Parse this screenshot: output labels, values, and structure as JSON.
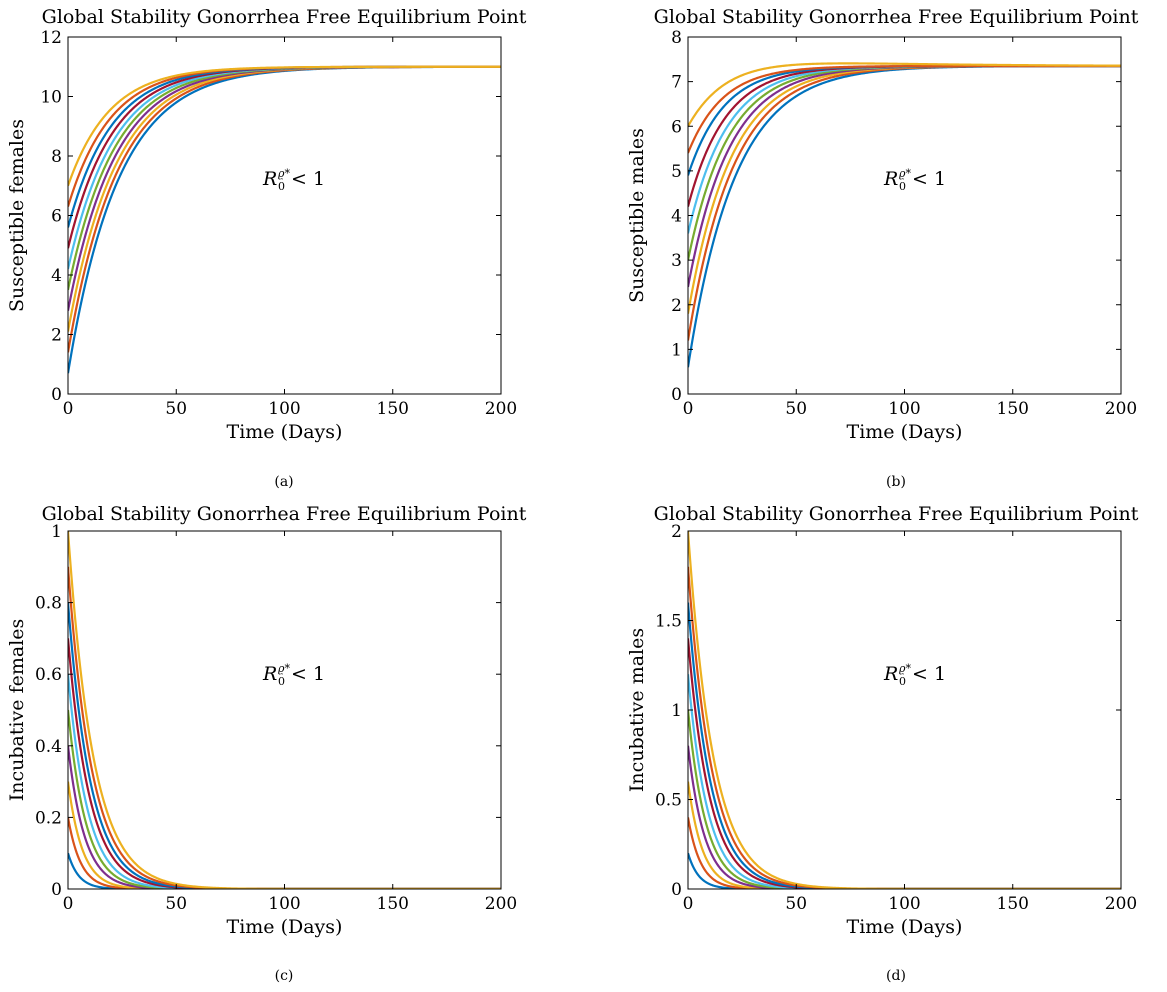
{
  "colors": [
    "#0072BD",
    "#D95319",
    "#EDB120",
    "#7E2F8E",
    "#77AC30",
    "#4DBEEE",
    "#A2142F",
    "#0072BD",
    "#D95319",
    "#EDB120"
  ],
  "chart_data": [
    {
      "type": "line",
      "title": "Global Stability Gonorrhea Free Equilibrium Point",
      "xlabel": "Time (Days)",
      "ylabel": "Susceptible females",
      "caption": "(a)",
      "annotation": {
        "main": "R",
        "sub": "0",
        "sup": "ϱ*",
        "rest": " < 1"
      },
      "xlim": [
        0,
        200
      ],
      "ylim": [
        0,
        12
      ],
      "xticks": [
        0,
        50,
        100,
        150,
        200
      ],
      "yticks": [
        0,
        2,
        4,
        6,
        8,
        10,
        12
      ],
      "equilibrium": 11,
      "series": [
        {
          "initial": 0.7,
          "rate": 0.043
        },
        {
          "initial": 1.4,
          "rate": 0.044
        },
        {
          "initial": 2.1,
          "rate": 0.045
        },
        {
          "initial": 2.8,
          "rate": 0.046
        },
        {
          "initial": 3.5,
          "rate": 0.047
        },
        {
          "initial": 4.2,
          "rate": 0.048
        },
        {
          "initial": 4.9,
          "rate": 0.049
        },
        {
          "initial": 5.6,
          "rate": 0.05
        },
        {
          "initial": 6.3,
          "rate": 0.051
        },
        {
          "initial": 7.0,
          "rate": 0.052
        }
      ]
    },
    {
      "type": "line",
      "title": "Global Stability Gonorrhea Free Equilibrium Point",
      "xlabel": "Time (Days)",
      "ylabel": "Susceptible males",
      "caption": "(b)",
      "annotation": {
        "main": "R",
        "sub": "0",
        "sup": "ϱ*",
        "rest": " < 1"
      },
      "xlim": [
        0,
        200
      ],
      "ylim": [
        0,
        8
      ],
      "xticks": [
        0,
        50,
        100,
        150,
        200
      ],
      "yticks": [
        0,
        1,
        2,
        3,
        4,
        5,
        6,
        7,
        8
      ],
      "equilibrium": 7.35,
      "series": [
        {
          "initial": 0.6,
          "rate": 0.046
        },
        {
          "initial": 1.2,
          "rate": 0.048
        },
        {
          "initial": 1.8,
          "rate": 0.05
        },
        {
          "initial": 2.4,
          "rate": 0.052
        },
        {
          "initial": 3.0,
          "rate": 0.054
        },
        {
          "initial": 3.6,
          "rate": 0.056
        },
        {
          "initial": 4.2,
          "rate": 0.058
        },
        {
          "initial": 4.9,
          "rate": 0.06
        },
        {
          "initial": 5.4,
          "rate": 0.062
        },
        {
          "initial": 6.0,
          "rate": 0.064,
          "peak": 7.45,
          "peak_x": 40
        }
      ]
    },
    {
      "type": "line",
      "title": "Global Stability Gonorrhea Free Equilibrium Point",
      "xlabel": "Time (Days)",
      "ylabel": "Incubative females",
      "caption": "(c)",
      "annotation": {
        "main": "R",
        "sub": "0",
        "sup": "ϱ*",
        "rest": " < 1"
      },
      "xlim": [
        0,
        200
      ],
      "ylim": [
        0,
        1
      ],
      "xticks": [
        0,
        50,
        100,
        150,
        200
      ],
      "yticks": [
        0,
        0.2,
        0.4,
        0.6,
        0.8,
        1
      ],
      "equilibrium": 0,
      "series": [
        {
          "initial": 0.1,
          "rate": 0.2
        },
        {
          "initial": 0.2,
          "rate": 0.17
        },
        {
          "initial": 0.3,
          "rate": 0.15
        },
        {
          "initial": 0.4,
          "rate": 0.13
        },
        {
          "initial": 0.5,
          "rate": 0.12
        },
        {
          "initial": 0.6,
          "rate": 0.11
        },
        {
          "initial": 0.7,
          "rate": 0.1
        },
        {
          "initial": 0.8,
          "rate": 0.095
        },
        {
          "initial": 0.9,
          "rate": 0.09
        },
        {
          "initial": 1.0,
          "rate": 0.085
        }
      ]
    },
    {
      "type": "line",
      "title": "Global Stability Gonorrhea Free Equilibrium Point",
      "xlabel": "Time (Days)",
      "ylabel": "Incubative males",
      "caption": "(d)",
      "annotation": {
        "main": "R",
        "sub": "0",
        "sup": "ϱ*",
        "rest": " < 1"
      },
      "xlim": [
        0,
        200
      ],
      "ylim": [
        0,
        2
      ],
      "xticks": [
        0,
        50,
        100,
        150,
        200
      ],
      "yticks": [
        0,
        0.5,
        1,
        1.5,
        2
      ],
      "equilibrium": 0,
      "series": [
        {
          "initial": 0.2,
          "rate": 0.2
        },
        {
          "initial": 0.4,
          "rate": 0.17
        },
        {
          "initial": 0.6,
          "rate": 0.15
        },
        {
          "initial": 0.8,
          "rate": 0.13
        },
        {
          "initial": 1.0,
          "rate": 0.12
        },
        {
          "initial": 1.2,
          "rate": 0.11
        },
        {
          "initial": 1.4,
          "rate": 0.1
        },
        {
          "initial": 1.6,
          "rate": 0.095
        },
        {
          "initial": 1.8,
          "rate": 0.09
        },
        {
          "initial": 2.0,
          "rate": 0.085
        }
      ]
    }
  ]
}
